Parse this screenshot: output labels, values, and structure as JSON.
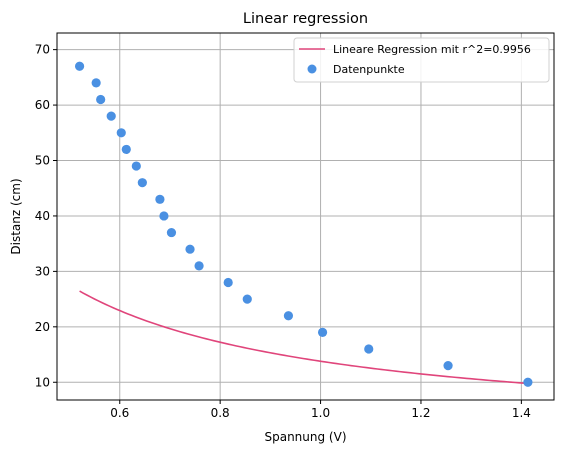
{
  "chart_data": {
    "type": "scatter",
    "title": "Linear regression",
    "xlabel": "Spannung (V)",
    "ylabel": "Distanz (cm)",
    "xlim": [
      0.475,
      1.465
    ],
    "ylim": [
      6.8,
      73.0
    ],
    "xticks": [
      0.6,
      0.8,
      1.0,
      1.2,
      1.4
    ],
    "xtick_labels": [
      "0.6",
      "0.8",
      "1.0",
      "1.2",
      "1.4"
    ],
    "yticks": [
      10,
      20,
      30,
      40,
      50,
      60,
      70
    ],
    "ytick_labels": [
      "10",
      "20",
      "30",
      "40",
      "50",
      "60",
      "70"
    ],
    "grid": true,
    "legend_position": "top-right",
    "series": [
      {
        "name": "Lineare Regression mit r^2=0.9956",
        "kind": "line",
        "color": "#e0457b",
        "formula": "y = 13.71 / x + 0.08",
        "x_range": [
          0.52,
          1.41
        ]
      },
      {
        "name": "Datenpunkte",
        "kind": "scatter",
        "color": "#4a90e2",
        "points": [
          [
            0.52,
            67
          ],
          [
            0.553,
            64
          ],
          [
            0.562,
            61
          ],
          [
            0.583,
            58
          ],
          [
            0.603,
            55
          ],
          [
            0.613,
            52
          ],
          [
            0.633,
            49
          ],
          [
            0.645,
            46
          ],
          [
            0.68,
            43
          ],
          [
            0.688,
            40
          ],
          [
            0.703,
            37
          ],
          [
            0.74,
            34
          ],
          [
            0.758,
            31
          ],
          [
            0.816,
            28
          ],
          [
            0.854,
            25
          ],
          [
            0.936,
            22
          ],
          [
            1.004,
            19
          ],
          [
            1.096,
            16
          ],
          [
            1.254,
            13
          ],
          [
            1.413,
            10
          ]
        ]
      }
    ]
  }
}
